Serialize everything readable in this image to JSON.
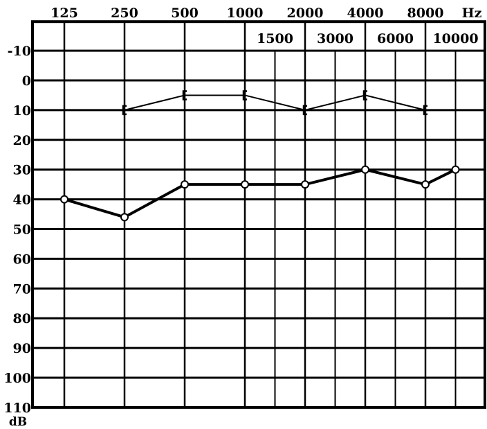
{
  "chart_data": {
    "type": "line",
    "x_unit": "Hz",
    "y_unit": "dB",
    "y_inverted": true,
    "ylim": [
      -20,
      110
    ],
    "y_ticks": [
      -10,
      0,
      10,
      20,
      30,
      40,
      50,
      60,
      70,
      80,
      90,
      100,
      110
    ],
    "x_ticks_top": [
      "125",
      "250",
      "500",
      "1000",
      "2000",
      "4000",
      "8000"
    ],
    "x_ticks_inner": [
      "1500",
      "3000",
      "6000",
      "10000"
    ],
    "frequencies": [
      125,
      250,
      500,
      1000,
      1500,
      2000,
      3000,
      4000,
      6000,
      8000,
      10000
    ],
    "grid": true,
    "series": [
      {
        "marker": "bracket",
        "line": "thin",
        "x": [
          250,
          500,
          1000,
          2000,
          4000,
          8000
        ],
        "y": [
          10,
          5,
          5,
          10,
          5,
          10
        ]
      },
      {
        "marker": "circle",
        "line": "thick",
        "x": [
          125,
          250,
          500,
          1000,
          2000,
          4000,
          8000,
          10000
        ],
        "y": [
          40,
          46,
          35,
          35,
          35,
          30,
          35,
          30
        ]
      }
    ]
  }
}
